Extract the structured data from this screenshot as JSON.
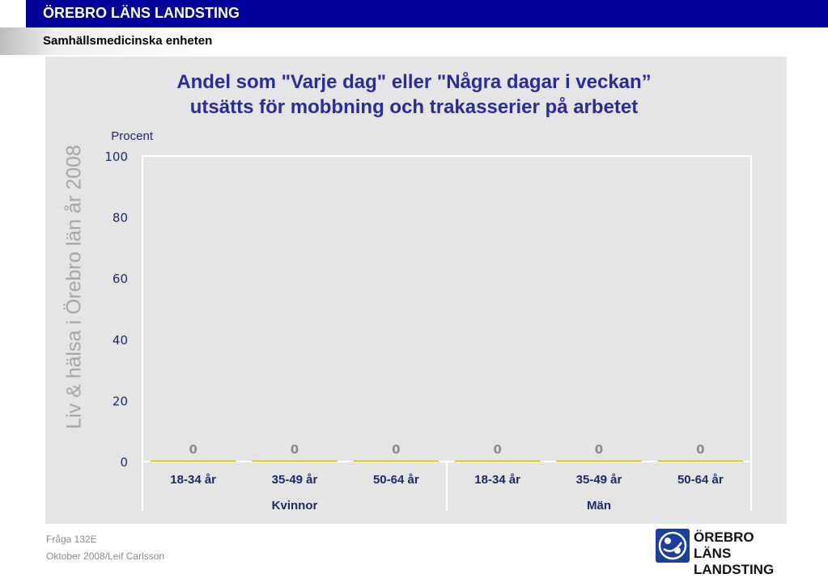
{
  "header": {
    "title": "ÖREBRO LÄNS LANDSTING",
    "subtitle": "Samhällsmedicinska enheten"
  },
  "watermark": "Liv & hälsa i Örebro län år 2008",
  "footer": {
    "question": "Fråga 132E",
    "date_author": "Oktober 2008/Leif Carlsson"
  },
  "logo": {
    "line1": "ÖREBRO LÄNS",
    "line2": "LANDSTING",
    "icon": "landsting-logo-icon"
  },
  "colors": {
    "header": "#000099",
    "title": "#2b2b9a",
    "panel": "#e5e5e5",
    "bar": "#c8b400",
    "axis_text": "#1f2a6b"
  },
  "chart_data": {
    "type": "bar",
    "title_line1": "Andel som \"Varje dag\" eller \"Några dagar i veckan”",
    "title_line2": "utsätts för mobbning och trakasserier på arbetet",
    "ylabel": "Procent",
    "ylim": [
      0,
      100
    ],
    "yticks": [
      0,
      20,
      40,
      60,
      80,
      100
    ],
    "grid": false,
    "categories": [
      "18-34 år",
      "35-49 år",
      "50-64 år",
      "18-34 år",
      "35-49 år",
      "50-64 år"
    ],
    "groups": [
      {
        "label": "Kvinnor",
        "categories": [
          "18-34 år",
          "35-49 år",
          "50-64 år"
        ]
      },
      {
        "label": "Män",
        "categories": [
          "18-34 år",
          "35-49 år",
          "50-64 år"
        ]
      }
    ],
    "values": [
      0,
      0,
      0,
      0,
      0,
      0
    ],
    "data_labels": [
      "0",
      "0",
      "0",
      "0",
      "0",
      "0"
    ]
  }
}
